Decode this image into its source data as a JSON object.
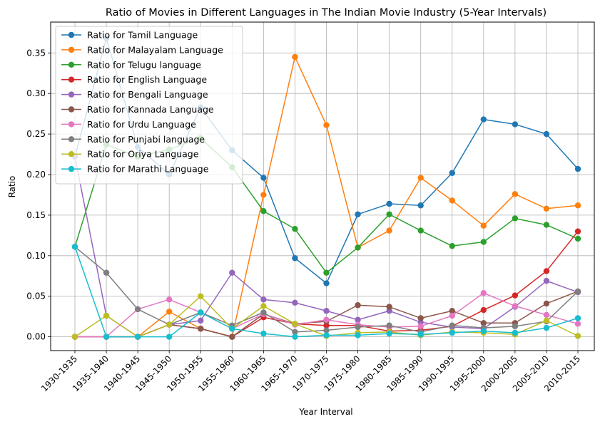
{
  "chart_data": {
    "type": "line",
    "title": "Ratio of Movies in Different Languages in The Indian Movie Industry (5-Year Intervals)",
    "xlabel": "Year Interval",
    "ylabel": "Ratio",
    "ylim": [
      -0.017,
      0.388
    ],
    "yticks": [
      0.0,
      0.05,
      0.1,
      0.15,
      0.2,
      0.25,
      0.3,
      0.35
    ],
    "ytick_labels": [
      "0.00",
      "0.05",
      "0.10",
      "0.15",
      "0.20",
      "0.25",
      "0.30",
      "0.35"
    ],
    "grid": true,
    "legend_position": "top-left",
    "categories": [
      "1930-1935",
      "1935-1940",
      "1940-1945",
      "1945-1950",
      "1950-1955",
      "1955-1960",
      "1960-1965",
      "1965-1970",
      "1970-1975",
      "1975-1980",
      "1980-1985",
      "1985-1990",
      "1990-1995",
      "1995-2000",
      "2000-2005",
      "2005-2010",
      "2010-2015"
    ],
    "series": [
      {
        "name": "Ratio for Tamil Language",
        "color": "#1f77b4",
        "values": [
          0.222,
          0.368,
          0.234,
          0.2,
          0.283,
          0.23,
          0.196,
          0.097,
          0.066,
          0.151,
          0.164,
          0.162,
          0.202,
          0.268,
          0.262,
          0.25,
          0.207
        ]
      },
      {
        "name": "Ratio for Malayalam Language",
        "color": "#ff7f0e",
        "values": [
          0.0,
          0.0,
          0.0,
          0.031,
          0.01,
          0.0,
          0.175,
          0.345,
          0.261,
          0.11,
          0.131,
          0.196,
          0.168,
          0.137,
          0.176,
          0.158,
          0.162
        ]
      },
      {
        "name": "Ratio for Telugu language",
        "color": "#2ca02c",
        "values": [
          0.111,
          0.237,
          0.222,
          0.231,
          0.245,
          0.209,
          0.155,
          0.133,
          0.079,
          0.11,
          0.151,
          0.131,
          0.112,
          0.117,
          0.146,
          0.138,
          0.121
        ]
      },
      {
        "name": "Ratio for English Language",
        "color": "#d62728",
        "values": [
          0.0,
          0.0,
          0.0,
          0.015,
          0.01,
          0.0,
          0.024,
          0.016,
          0.014,
          0.014,
          0.007,
          0.008,
          0.013,
          0.033,
          0.051,
          0.081,
          0.13
        ]
      },
      {
        "name": "Ratio for Bengali Language",
        "color": "#9467bd",
        "values": [
          0.222,
          0.026,
          0.0,
          0.015,
          0.02,
          0.079,
          0.046,
          0.042,
          0.032,
          0.021,
          0.032,
          0.018,
          0.012,
          0.01,
          0.037,
          0.069,
          0.055
        ]
      },
      {
        "name": "Ratio for Kannada Language",
        "color": "#8c564b",
        "values": [
          0.0,
          0.0,
          0.0,
          0.015,
          0.01,
          0.0,
          0.028,
          0.016,
          0.019,
          0.039,
          0.037,
          0.023,
          0.032,
          0.017,
          0.017,
          0.041,
          0.056
        ]
      },
      {
        "name": "Ratio for Urdu Language",
        "color": "#e377c2",
        "values": [
          0.0,
          0.0,
          0.034,
          0.046,
          0.03,
          0.01,
          0.028,
          0.015,
          0.021,
          0.015,
          0.012,
          0.013,
          0.026,
          0.054,
          0.038,
          0.027,
          0.016
        ]
      },
      {
        "name": "Ratio for Punjabi language",
        "color": "#7f7f7f",
        "values": [
          0.111,
          0.079,
          0.034,
          0.015,
          0.03,
          0.014,
          0.03,
          0.006,
          0.008,
          0.012,
          0.014,
          0.006,
          0.014,
          0.011,
          0.013,
          0.019,
          0.056
        ]
      },
      {
        "name": "Ratio for Oriya Language",
        "color": "#bcbd22",
        "values": [
          0.0,
          0.026,
          0.0,
          0.015,
          0.05,
          0.01,
          0.038,
          0.016,
          0.001,
          0.005,
          0.006,
          0.002,
          0.006,
          0.005,
          0.003,
          0.02,
          0.001
        ]
      },
      {
        "name": "Ratio for Marathi Language",
        "color": "#17becf",
        "values": [
          0.111,
          0.0,
          0.0,
          0.0,
          0.03,
          0.01,
          0.004,
          0.0,
          0.002,
          0.002,
          0.004,
          0.003,
          0.005,
          0.007,
          0.005,
          0.011,
          0.023
        ]
      }
    ]
  }
}
